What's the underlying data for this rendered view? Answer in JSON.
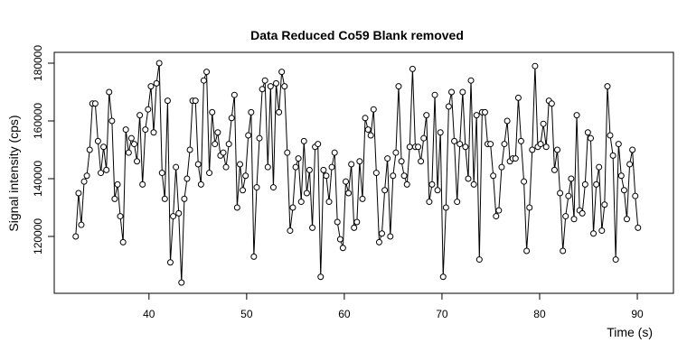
{
  "chart_data": {
    "type": "line",
    "title": "Data Reduced Co59 Blank removed",
    "xlabel": "Time (s)",
    "ylabel": "Signal intensity (cps)",
    "x": [
      32.5,
      32.79,
      33.07,
      33.36,
      33.64,
      33.93,
      34.21,
      34.5,
      34.78,
      35.07,
      35.35,
      35.64,
      35.92,
      36.21,
      36.49,
      36.78,
      37.06,
      37.35,
      37.63,
      37.92,
      38.2,
      38.49,
      38.77,
      39.06,
      39.34,
      39.63,
      39.91,
      40.2,
      40.48,
      40.77,
      41.05,
      41.34,
      41.62,
      41.91,
      42.19,
      42.48,
      42.76,
      43.05,
      43.33,
      43.62,
      43.9,
      44.19,
      44.47,
      44.76,
      45.04,
      45.33,
      45.61,
      45.9,
      46.18,
      46.47,
      46.75,
      47.04,
      47.32,
      47.61,
      47.89,
      48.18,
      48.46,
      48.75,
      49.03,
      49.32,
      49.6,
      49.89,
      50.17,
      50.46,
      50.74,
      51.03,
      51.31,
      51.6,
      51.88,
      52.17,
      52.45,
      52.74,
      53.02,
      53.31,
      53.59,
      53.88,
      54.16,
      54.45,
      54.73,
      55.02,
      55.3,
      55.59,
      55.87,
      56.16,
      56.44,
      56.73,
      57.01,
      57.3,
      57.58,
      57.87,
      58.15,
      58.44,
      58.72,
      59.01,
      59.29,
      59.58,
      59.86,
      60.15,
      60.43,
      60.72,
      61,
      61.29,
      61.57,
      61.86,
      62.14,
      62.43,
      62.71,
      63,
      63.28,
      63.57,
      63.85,
      64.14,
      64.42,
      64.71,
      64.99,
      65.28,
      65.56,
      65.85,
      66.13,
      66.42,
      66.7,
      66.99,
      67.27,
      67.56,
      67.84,
      68.13,
      68.41,
      68.7,
      68.98,
      69.27,
      69.55,
      69.84,
      70.12,
      70.41,
      70.69,
      70.98,
      71.26,
      71.55,
      71.83,
      72.12,
      72.4,
      72.69,
      72.97,
      73.26,
      73.54,
      73.83,
      74.11,
      74.4,
      74.68,
      74.97,
      75.25,
      75.54,
      75.82,
      76.11,
      76.39,
      76.68,
      76.96,
      77.25,
      77.53,
      77.82,
      78.1,
      78.39,
      78.67,
      78.96,
      79.24,
      79.53,
      79.81,
      80.1,
      80.38,
      80.67,
      80.95,
      81.24,
      81.52,
      81.81,
      82.09,
      82.38,
      82.66,
      82.95,
      83.23,
      83.52,
      83.8,
      84.09,
      84.37,
      84.66,
      84.94,
      85.23,
      85.51,
      85.8,
      86.08,
      86.37,
      86.65,
      86.94,
      87.22,
      87.51,
      87.79,
      88.08,
      88.36,
      88.65,
      88.93,
      89.22,
      89.5,
      89.79,
      90.07
    ],
    "values": [
      120000,
      135000,
      124000,
      139000,
      141000,
      150000,
      166000,
      166000,
      153000,
      142000,
      151000,
      143000,
      170000,
      160000,
      133000,
      138000,
      127000,
      118000,
      157000,
      149000,
      154000,
      152000,
      146000,
      162000,
      138000,
      157000,
      164000,
      172000,
      156000,
      173000,
      180000,
      142000,
      133000,
      167000,
      111000,
      127000,
      144000,
      128000,
      104000,
      133000,
      140000,
      150000,
      167000,
      167000,
      145000,
      138000,
      174000,
      177000,
      142000,
      163000,
      152000,
      156000,
      148000,
      149000,
      144000,
      152000,
      161000,
      169000,
      130000,
      145000,
      136000,
      141000,
      155000,
      163000,
      113000,
      137000,
      154000,
      171000,
      174000,
      144000,
      172000,
      137000,
      173000,
      163000,
      177000,
      172000,
      149000,
      122000,
      130000,
      144000,
      147000,
      132000,
      153000,
      135000,
      143000,
      123000,
      151000,
      152000,
      106000,
      143000,
      141000,
      132000,
      144000,
      149000,
      125000,
      119000,
      116000,
      139000,
      135000,
      145000,
      123000,
      125000,
      146000,
      133000,
      161000,
      157000,
      155000,
      164000,
      142000,
      118000,
      121000,
      136000,
      147000,
      120000,
      141000,
      149000,
      172000,
      146000,
      141000,
      138000,
      151000,
      178000,
      151000,
      151000,
      146000,
      154000,
      162000,
      132000,
      138000,
      169000,
      136000,
      156000,
      106000,
      130000,
      165000,
      170000,
      153000,
      132000,
      152000,
      170000,
      151000,
      140000,
      174000,
      138000,
      162000,
      112000,
      163000,
      163000,
      152000,
      152000,
      141000,
      127000,
      129000,
      144000,
      152000,
      160000,
      146000,
      147000,
      147000,
      168000,
      153000,
      139000,
      115000,
      130000,
      150000,
      179000,
      151000,
      152000,
      159000,
      151000,
      167000,
      166000,
      143000,
      150000,
      135000,
      115000,
      127000,
      134000,
      140000,
      126000,
      162000,
      129000,
      128000,
      138000,
      156000,
      154000,
      121000,
      138000,
      144000,
      122000,
      131000,
      172000,
      155000,
      148000,
      112000,
      152000,
      141000,
      136000,
      126000,
      145000,
      150000,
      134000,
      123000
    ],
    "color": "#000000",
    "xlim": [
      30.3,
      93.7
    ],
    "ylim": [
      100300,
      183750
    ],
    "xticks": [
      40,
      50,
      60,
      70,
      80,
      90
    ],
    "yticks": [
      120000,
      140000,
      160000,
      180000
    ]
  }
}
